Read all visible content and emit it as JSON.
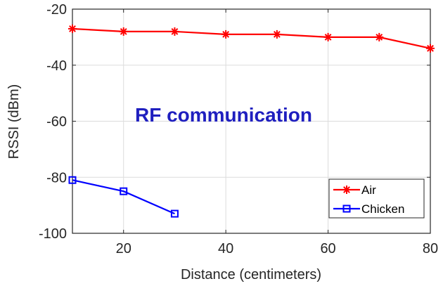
{
  "chart_data": {
    "type": "line",
    "title": "",
    "xlabel": "Distance (centimeters)",
    "ylabel": "RSSI (dBm)",
    "xlim": [
      10,
      80
    ],
    "ylim": [
      -100,
      -20
    ],
    "xticks": [
      20,
      40,
      60,
      80
    ],
    "xtick_labels": [
      "20",
      "40",
      "60",
      "80"
    ],
    "yticks": [
      -100,
      -80,
      -60,
      -40,
      -20
    ],
    "ytick_labels": [
      "-100",
      "-80",
      "-60",
      "-40",
      "-20"
    ],
    "grid": true,
    "legend_position": "bottom-right",
    "annotation": {
      "text": "RF communication",
      "color": "#1f1fbf"
    },
    "series": [
      {
        "name": "Air",
        "color": "#ff0000",
        "marker": "asterisk",
        "x": [
          10,
          20,
          30,
          40,
          50,
          60,
          70,
          80
        ],
        "y": [
          -27,
          -28,
          -28,
          -29,
          -29,
          -30,
          -30,
          -34
        ]
      },
      {
        "name": "Chicken",
        "color": "#0000ff",
        "marker": "square",
        "x": [
          10,
          20,
          30
        ],
        "y": [
          -81,
          -85,
          -93
        ]
      }
    ]
  }
}
